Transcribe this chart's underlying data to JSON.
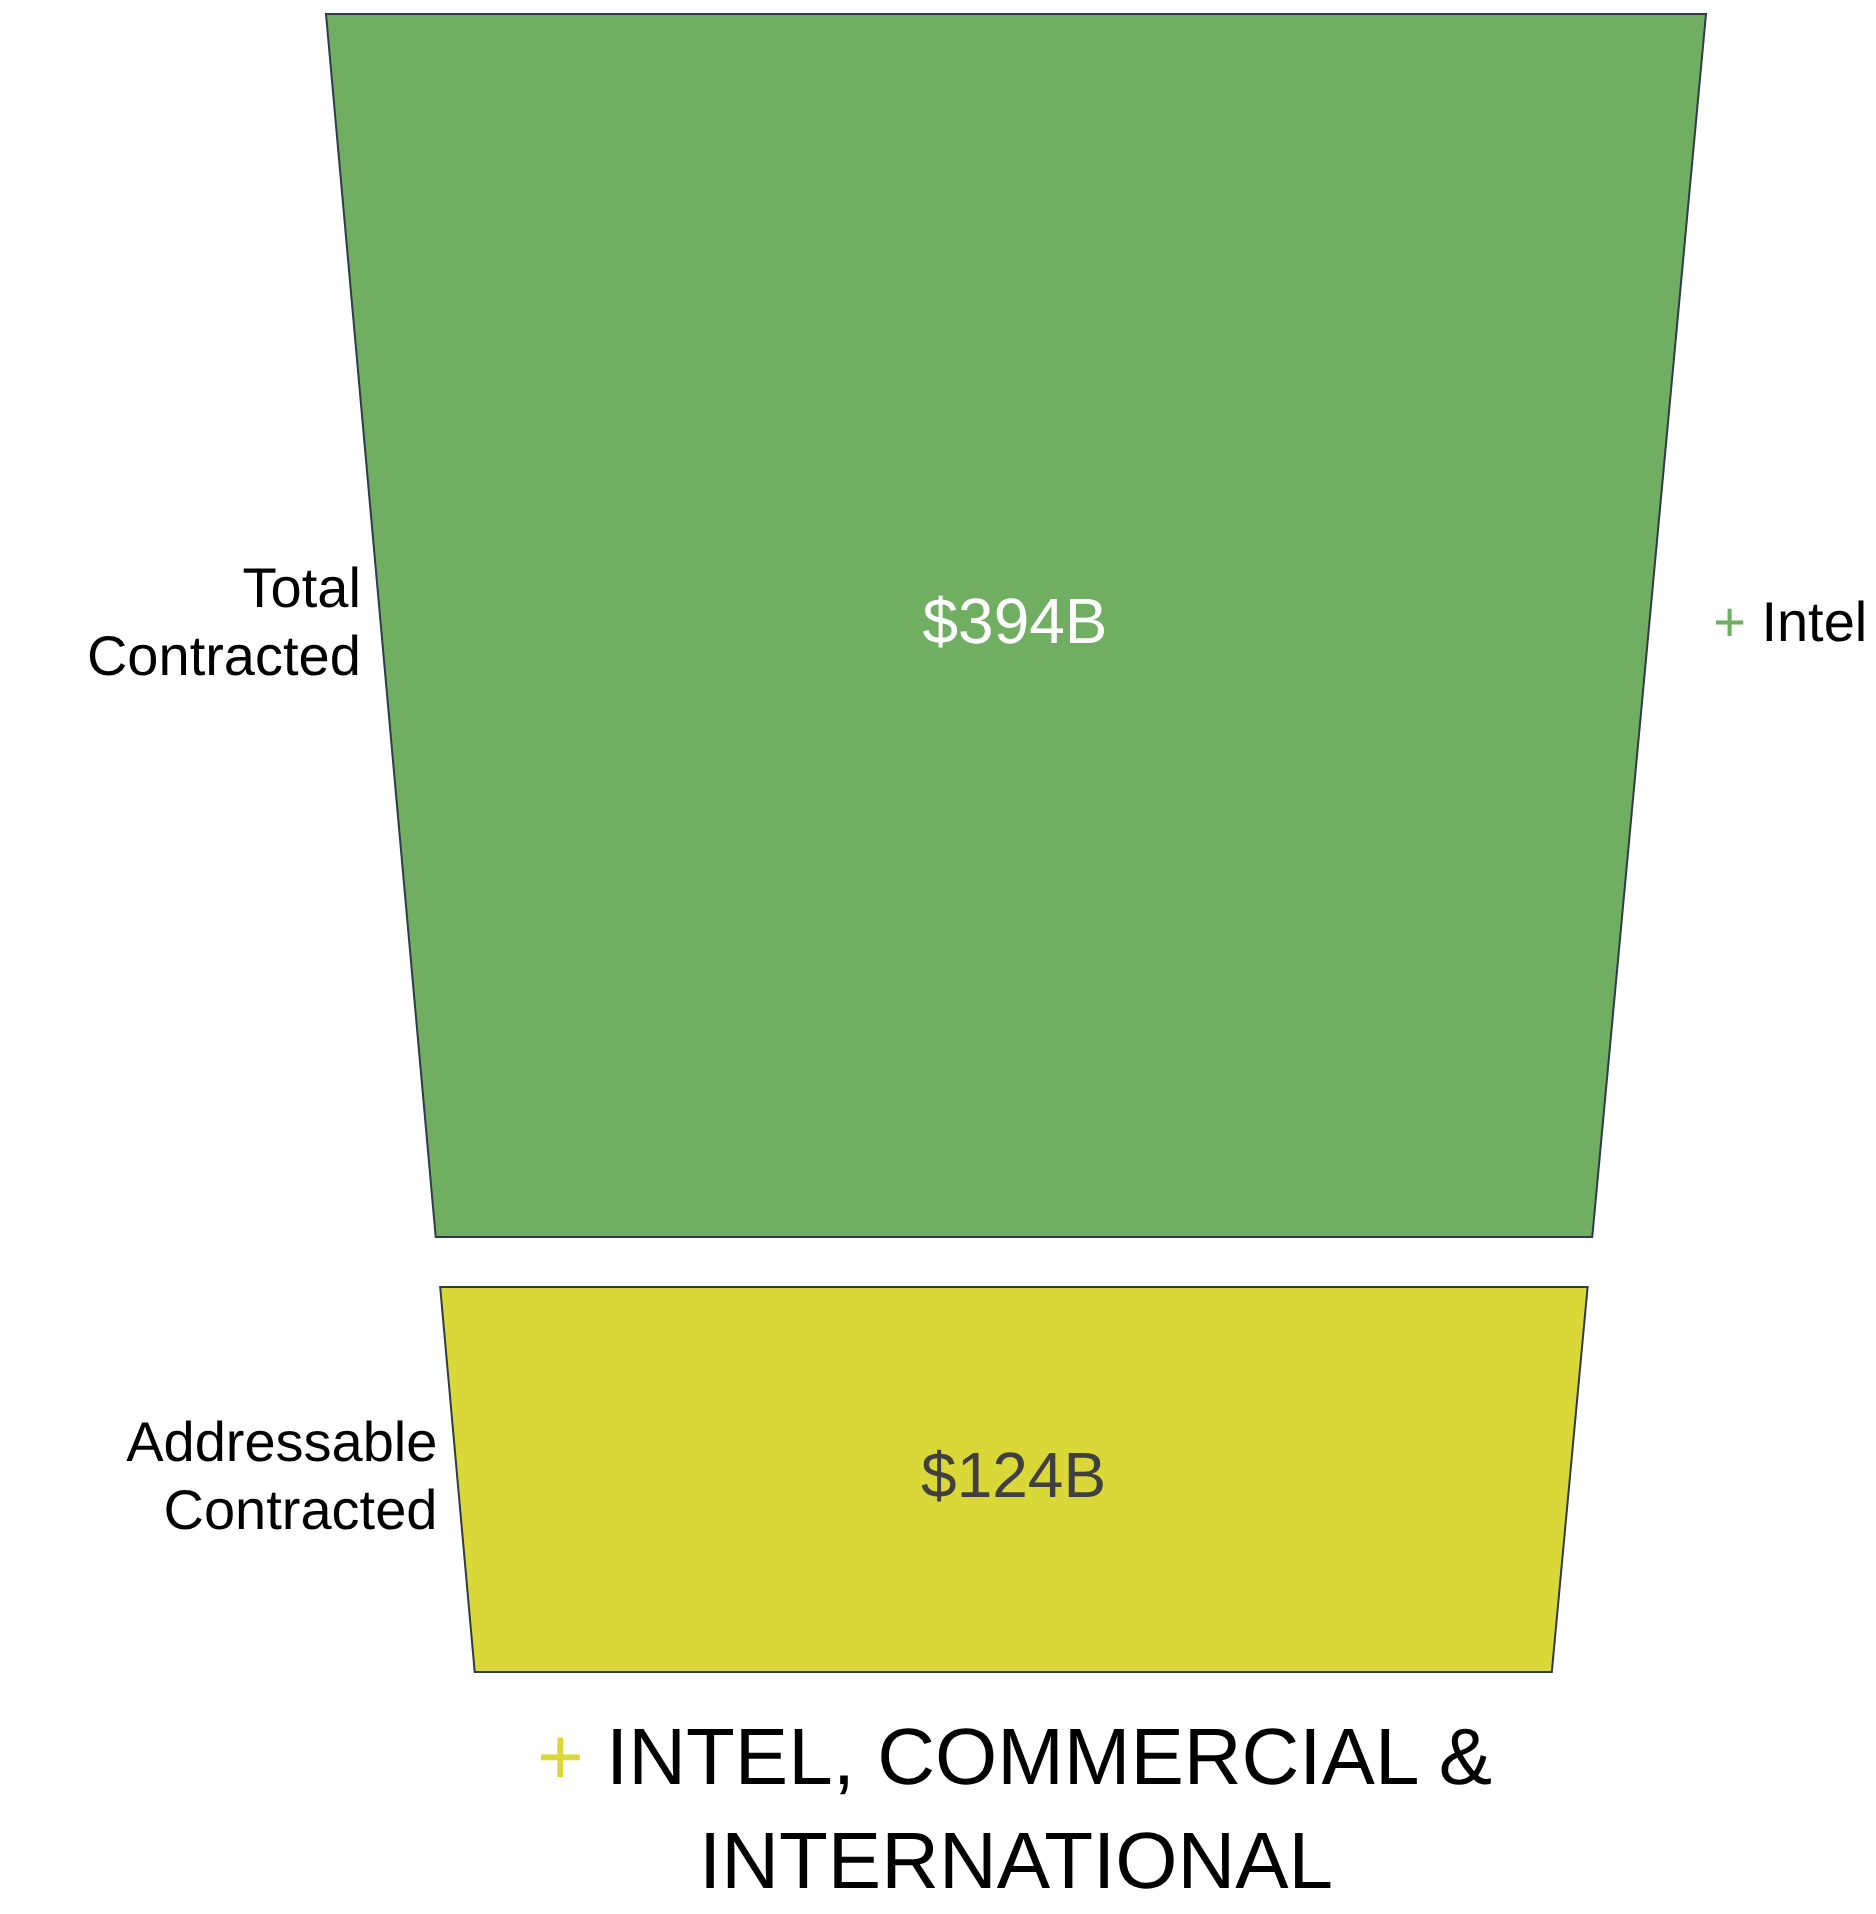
{
  "chart_data": {
    "type": "other",
    "categories": [
      "Total Contracted",
      "Addressable Contracted"
    ],
    "values": [
      394,
      124
    ],
    "value_labels": [
      "$394B",
      "$124B"
    ],
    "colors": [
      "#70ae62",
      "#dad838"
    ],
    "annotations": [
      "+ Intel",
      "+ INTEL, COMMERCIAL & INTERNATIONAL"
    ]
  }
}
